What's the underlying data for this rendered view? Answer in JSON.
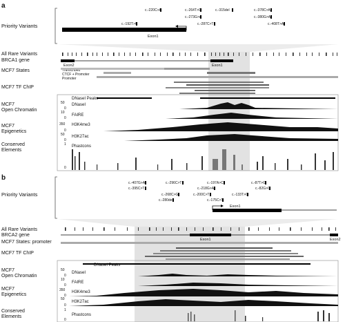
{
  "panels": [
    {
      "letter": "a",
      "priority_label": "Priority Variants",
      "variants": [
        {
          "id": "c.-220C>A",
          "row": 0
        },
        {
          "id": "c.-264T>G",
          "row": 0
        },
        {
          "id": "c.-315del",
          "row": 0
        },
        {
          "id": "c.-378C>A",
          "row": 0
        },
        {
          "id": "c.-273G>A",
          "row": 1
        },
        {
          "id": "c.-380G>A",
          "row": 1
        },
        {
          "id": "c.-192T>C",
          "row": 2
        },
        {
          "id": "c.-287C>T",
          "row": 2
        },
        {
          "id": "c.-408T>A",
          "row": 2
        }
      ],
      "zoom_exon_label": "Exon1",
      "all_rare_variants_label": "All Rare Variants",
      "gene_label": "BRCA1 gene",
      "gene_exons": [
        "Exon2",
        "Exon1"
      ],
      "states_label": "MCF7 States",
      "state_names": [
        "Transcribed",
        "CTCF + Promoter",
        "Promoter"
      ],
      "tf_chip_label": "MCF7 TF ChIP",
      "dnase_peaks_label": "DNaseI Peaks",
      "open_chromatin_label": [
        "MCF7",
        "Open Chromatin"
      ],
      "dnase_track": {
        "label": "DNaseI",
        "max": "50",
        "min": "0"
      },
      "faire_track": {
        "label": "FAIRE",
        "max": "10",
        "min": "0"
      },
      "epigenetics_label": [
        "MCF7",
        "Epigenetics"
      ],
      "h3k4me3_track": {
        "label": "H3K4me3",
        "max": "350",
        "min": "0"
      },
      "h3k27ac_track": {
        "label": "H3K27ac",
        "max": "50",
        "min": "0"
      },
      "conserved_label": [
        "Conserved",
        "Elements"
      ],
      "phastcons_track": {
        "label": "Phastcons",
        "max": "1",
        "min": "0"
      }
    },
    {
      "letter": "b",
      "priority_label": "Priority Variants",
      "variants": [
        {
          "id": "c.-407G>A",
          "row": 0
        },
        {
          "id": "c.-296C>T",
          "row": 0
        },
        {
          "id": "c.-197A>C",
          "row": 0
        },
        {
          "id": "c.-87T>G",
          "row": 0
        },
        {
          "id": "c.-395C>T",
          "row": 1
        },
        {
          "id": "c.-218G>A",
          "row": 1
        },
        {
          "id": "c.-133T>G",
          "row": 1
        },
        {
          "id": "c.-82G>C",
          "row": 1
        },
        {
          "id": "c.-268C>G",
          "row": 2
        },
        {
          "id": "c.-200C>T",
          "row": 2
        },
        {
          "id": "c.-280del",
          "row": 3
        },
        {
          "id": "c.-175C>T",
          "row": 3
        }
      ],
      "zoom_exon_label": "Exon1",
      "all_rare_variants_label": "All Rare Variants",
      "gene_label": "BRCA2 gene",
      "gene_exons": [
        "Exon1",
        "Exon2"
      ],
      "states_label": "MCF7 States: promoter",
      "tf_chip_label": "MCF7 TF ChIP",
      "dnase_peaks_label": "DNaseI Peaks",
      "open_chromatin_label": [
        "MCF7",
        "Open Chromatin"
      ],
      "dnase_track": {
        "label": "DNaseI",
        "max": "50",
        "min": "0"
      },
      "faire_track": {
        "label": "FAIRE",
        "max": "10",
        "min": "0"
      },
      "epigenetics_label": [
        "MCF7",
        "Epigenetics"
      ],
      "h3k4me3_track": {
        "label": "H3K4me3",
        "max": "350",
        "min": "0"
      },
      "h3k27ac_track": {
        "label": "H3K27ac",
        "max": "50",
        "min": "0"
      },
      "conserved_label": [
        "Conserved",
        "Elements"
      ],
      "phastcons_track": {
        "label": "Phastcons",
        "max": "1",
        "min": "0"
      }
    }
  ]
}
